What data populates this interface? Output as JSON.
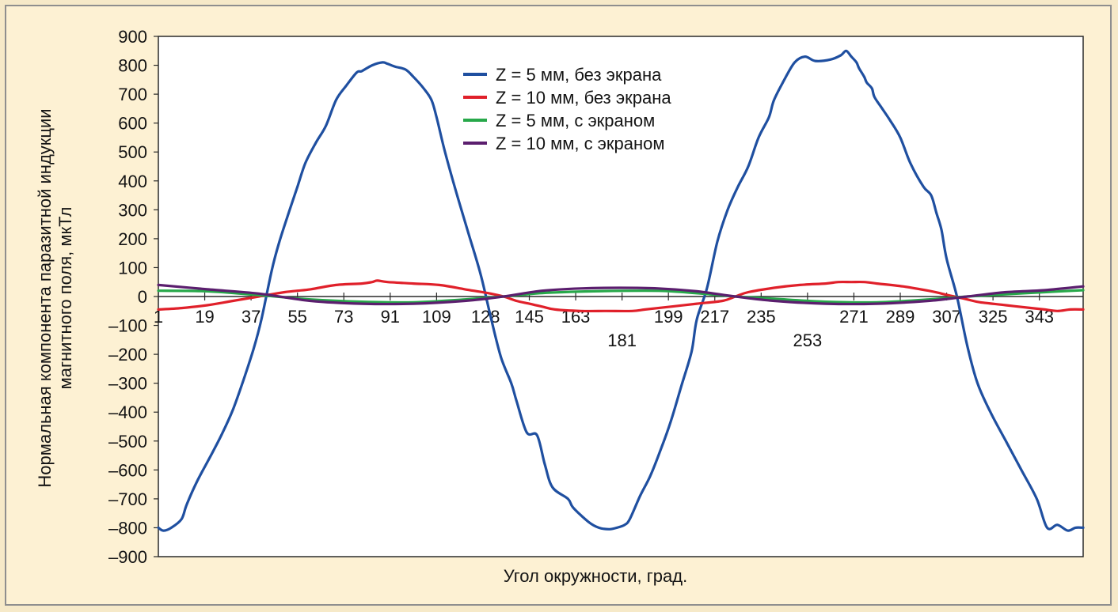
{
  "chart_data": {
    "type": "line",
    "xlabel": "Угол окружности, град.",
    "ylabel": [
      "Нормальная компонента паразитной индукции",
      "магнитного поля, мкТл"
    ],
    "ylim": [
      -900,
      900
    ],
    "xlim": [
      1,
      360
    ],
    "yticks": [
      "900",
      "800",
      "700",
      "600",
      "500",
      "400",
      "300",
      "200",
      "100",
      "0",
      "–100",
      "–200",
      "–300",
      "–400",
      "–500",
      "–600",
      "–700",
      "–800",
      "–900"
    ],
    "xticks": [
      {
        "value": 1,
        "label": "1",
        "row": 0
      },
      {
        "value": 19,
        "label": "19",
        "row": 0
      },
      {
        "value": 37,
        "label": "37",
        "row": 0
      },
      {
        "value": 55,
        "label": "55",
        "row": 0
      },
      {
        "value": 73,
        "label": "73",
        "row": 0
      },
      {
        "value": 91,
        "label": "91",
        "row": 0
      },
      {
        "value": 109,
        "label": "109",
        "row": 0
      },
      {
        "value": 128,
        "label": "128",
        "row": 0
      },
      {
        "value": 145,
        "label": "145",
        "row": 0
      },
      {
        "value": 163,
        "label": "163",
        "row": 0
      },
      {
        "value": 181,
        "label": "181",
        "row": 1
      },
      {
        "value": 199,
        "label": "199",
        "row": 0
      },
      {
        "value": 217,
        "label": "217",
        "row": 0
      },
      {
        "value": 235,
        "label": "235",
        "row": 0
      },
      {
        "value": 253,
        "label": "253",
        "row": 1
      },
      {
        "value": 271,
        "label": "271",
        "row": 0
      },
      {
        "value": 289,
        "label": "289",
        "row": 0
      },
      {
        "value": 307,
        "label": "307",
        "row": 0
      },
      {
        "value": 325,
        "label": "325",
        "row": 0
      },
      {
        "value": 343,
        "label": "343",
        "row": 0
      }
    ],
    "legend_position": "top-center",
    "grid": false,
    "series": [
      {
        "name": "Z = 5 мм, без экрана",
        "color": "#1f4fa0",
        "x": [
          1,
          3,
          6,
          10,
          12,
          16,
          22,
          26,
          30,
          34,
          38,
          41,
          45,
          48,
          52,
          55,
          58,
          62,
          66,
          70,
          74,
          78,
          80,
          84,
          88,
          90,
          93,
          97,
          100,
          104,
          107,
          109,
          112,
          116,
          121,
          126,
          130,
          134,
          138,
          140,
          144,
          148,
          151,
          154,
          160,
          162,
          168,
          172,
          176,
          179,
          182,
          184,
          188,
          192,
          196,
          200,
          204,
          208,
          210,
          214,
          218,
          222,
          226,
          230,
          234,
          238,
          240,
          244,
          248,
          252,
          256,
          262,
          266,
          268,
          270,
          272,
          273,
          275,
          276,
          278,
          279,
          282,
          285,
          289,
          293,
          298,
          301,
          303,
          305,
          307,
          311,
          315,
          319,
          324,
          330,
          336,
          342,
          346,
          350,
          354,
          357,
          360
        ],
        "y": [
          -800,
          -810,
          -800,
          -770,
          -720,
          -640,
          -540,
          -470,
          -390,
          -290,
          -180,
          -80,
          90,
          190,
          300,
          380,
          460,
          530,
          590,
          680,
          730,
          775,
          780,
          800,
          810,
          805,
          795,
          785,
          760,
          720,
          680,
          620,
          510,
          380,
          230,
          80,
          -70,
          -210,
          -300,
          -360,
          -470,
          -480,
          -580,
          -660,
          -700,
          -730,
          -780,
          -800,
          -805,
          -800,
          -790,
          -770,
          -690,
          -620,
          -530,
          -430,
          -310,
          -190,
          -80,
          30,
          190,
          300,
          380,
          450,
          550,
          620,
          680,
          750,
          810,
          830,
          815,
          820,
          835,
          850,
          830,
          810,
          790,
          760,
          740,
          720,
          690,
          650,
          610,
          550,
          460,
          380,
          350,
          290,
          230,
          130,
          0,
          -170,
          -300,
          -400,
          -500,
          -600,
          -700,
          -800,
          -790,
          -810,
          -800,
          -800
        ],
        "smooth": true
      },
      {
        "name": "Z = 10 мм, без экрана",
        "color": "#e0202a",
        "x": [
          1,
          10,
          20,
          30,
          40,
          50,
          60,
          70,
          80,
          84,
          86,
          90,
          100,
          110,
          120,
          130,
          135,
          140,
          145,
          150,
          155,
          165,
          175,
          185,
          190,
          200,
          210,
          220,
          225,
          230,
          240,
          250,
          260,
          265,
          270,
          275,
          280,
          290,
          300,
          305,
          310,
          315,
          320,
          330,
          340,
          345,
          350,
          355,
          360
        ],
        "y": [
          -45,
          -40,
          -30,
          -15,
          0,
          15,
          25,
          40,
          45,
          50,
          55,
          50,
          45,
          40,
          25,
          10,
          0,
          -15,
          -25,
          -35,
          -45,
          -50,
          -50,
          -50,
          -45,
          -35,
          -25,
          -15,
          0,
          15,
          30,
          40,
          45,
          50,
          50,
          50,
          45,
          35,
          20,
          10,
          0,
          -10,
          -20,
          -30,
          -40,
          -45,
          -50,
          -45,
          -45
        ],
        "smooth": true
      },
      {
        "name": "Z = 5 мм, с экраном",
        "color": "#27a84a",
        "x": [
          1,
          20,
          40,
          60,
          80,
          100,
          120,
          135,
          150,
          170,
          190,
          200,
          215,
          225,
          240,
          260,
          280,
          300,
          315,
          330,
          345,
          360
        ],
        "y": [
          20,
          18,
          5,
          -10,
          -18,
          -20,
          -10,
          0,
          12,
          18,
          20,
          18,
          8,
          0,
          -8,
          -18,
          -20,
          -10,
          0,
          8,
          15,
          22
        ],
        "smooth": true
      },
      {
        "name": "Z = 10 мм, с экраном",
        "color": "#5b1e6e",
        "x": [
          1,
          20,
          40,
          60,
          80,
          100,
          120,
          135,
          150,
          165,
          180,
          195,
          210,
          225,
          240,
          260,
          280,
          300,
          315,
          330,
          345,
          360
        ],
        "y": [
          40,
          25,
          10,
          -15,
          -25,
          -25,
          -15,
          0,
          20,
          28,
          30,
          28,
          18,
          0,
          -15,
          -25,
          -25,
          -15,
          0,
          15,
          22,
          35
        ],
        "smooth": true
      }
    ]
  }
}
